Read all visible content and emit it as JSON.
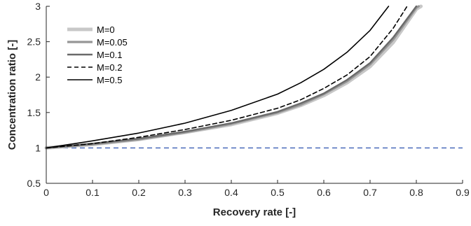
{
  "chart_data": {
    "type": "line",
    "xlabel": "Recovery rate [-]",
    "ylabel": "Concentration ratio [-]",
    "xlim": [
      0,
      0.9
    ],
    "ylim": [
      0.5,
      3
    ],
    "x_ticks": [
      "0",
      "0.1",
      "0.2",
      "0.3",
      "0.4",
      "0.5",
      "0.6",
      "0.7",
      "0.8",
      "0.9"
    ],
    "y_ticks": [
      "0.5",
      "1",
      "1.5",
      "2",
      "2.5",
      "3"
    ],
    "grid": false,
    "legend_position": "top-left",
    "series": [
      {
        "name": "M=0",
        "color": "#c8c8c8",
        "style": "solid",
        "x": [
          0,
          0.1,
          0.2,
          0.3,
          0.4,
          0.5,
          0.55,
          0.6,
          0.65,
          0.7,
          0.75,
          0.8,
          0.81
        ],
        "y": [
          1.0,
          1.05,
          1.12,
          1.22,
          1.33,
          1.49,
          1.6,
          1.74,
          1.92,
          2.15,
          2.49,
          2.96,
          3.0
        ]
      },
      {
        "name": "M=0.05",
        "color": "#969696",
        "style": "solid",
        "x": [
          0,
          0.1,
          0.2,
          0.3,
          0.4,
          0.5,
          0.55,
          0.6,
          0.65,
          0.7,
          0.75,
          0.8,
          0.805
        ],
        "y": [
          1.0,
          1.05,
          1.12,
          1.22,
          1.34,
          1.5,
          1.61,
          1.76,
          1.94,
          2.18,
          2.53,
          2.98,
          3.0
        ]
      },
      {
        "name": "M=0.1",
        "color": "#6a6a6a",
        "style": "solid",
        "x": [
          0,
          0.1,
          0.2,
          0.3,
          0.4,
          0.5,
          0.55,
          0.6,
          0.65,
          0.7,
          0.75,
          0.8
        ],
        "y": [
          1.0,
          1.06,
          1.13,
          1.23,
          1.35,
          1.51,
          1.63,
          1.77,
          1.96,
          2.2,
          2.56,
          3.0
        ]
      },
      {
        "name": "M=0.2",
        "color": "#000000",
        "style": "dashed",
        "x": [
          0,
          0.1,
          0.2,
          0.3,
          0.4,
          0.5,
          0.55,
          0.6,
          0.65,
          0.7,
          0.75,
          0.78
        ],
        "y": [
          1.0,
          1.06,
          1.15,
          1.26,
          1.39,
          1.56,
          1.68,
          1.84,
          2.03,
          2.29,
          2.69,
          3.0
        ]
      },
      {
        "name": "M=0.5",
        "color": "#000000",
        "style": "solid",
        "x": [
          0,
          0.1,
          0.2,
          0.3,
          0.4,
          0.5,
          0.55,
          0.6,
          0.65,
          0.7,
          0.74
        ],
        "y": [
          1.0,
          1.1,
          1.21,
          1.35,
          1.53,
          1.76,
          1.92,
          2.11,
          2.35,
          2.66,
          3.0
        ]
      }
    ],
    "reference_line": {
      "y": 1,
      "color": "#3c5fb4",
      "style": "dashed"
    }
  }
}
